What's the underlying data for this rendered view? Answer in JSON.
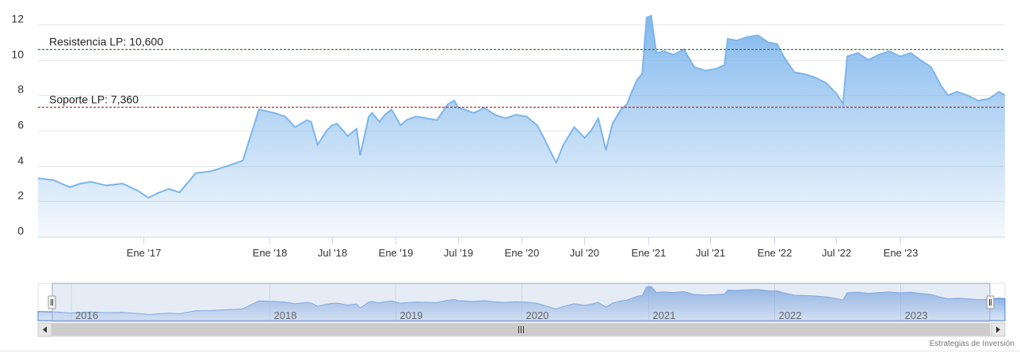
{
  "chart_data": {
    "type": "area",
    "x_ticks": [
      "Ene '17",
      "Ene '18",
      "Jul '18",
      "Ene '19",
      "Jul '19",
      "Ene '20",
      "Jul '20",
      "Ene '21",
      "Jul '21",
      "Ene '22",
      "Jul '22",
      "Ene '23"
    ],
    "x_tick_dates": [
      "2017-01-01",
      "2018-01-01",
      "2018-07-01",
      "2019-01-01",
      "2019-07-01",
      "2020-01-01",
      "2020-07-01",
      "2021-01-01",
      "2021-07-01",
      "2022-01-01",
      "2022-07-01",
      "2023-01-01"
    ],
    "y_ticks": [
      0,
      2,
      4,
      6,
      8,
      10,
      12
    ],
    "ylim": [
      0,
      12.5
    ],
    "xlim": [
      "2016-03-01",
      "2023-11-01"
    ],
    "series": [
      {
        "x": [
          "2016-03-01",
          "2016-04-15",
          "2016-06-01",
          "2016-07-01",
          "2016-08-01",
          "2016-09-15",
          "2016-11-01",
          "2016-12-15",
          "2017-01-15",
          "2017-02-15",
          "2017-03-15",
          "2017-04-15",
          "2017-06-01",
          "2017-07-15",
          "2017-09-01",
          "2017-10-15",
          "2017-12-01",
          "2018-01-15",
          "2018-02-15",
          "2018-03-15",
          "2018-04-20",
          "2018-05-01",
          "2018-05-20",
          "2018-06-15",
          "2018-07-01",
          "2018-07-15",
          "2018-08-15",
          "2018-09-10",
          "2018-09-20",
          "2018-10-15",
          "2018-10-25",
          "2018-11-15",
          "2018-12-01",
          "2018-12-20",
          "2019-01-01",
          "2019-01-15",
          "2019-02-01",
          "2019-03-01",
          "2019-04-01",
          "2019-05-01",
          "2019-06-01",
          "2019-06-20",
          "2019-07-01",
          "2019-07-20",
          "2019-08-15",
          "2019-09-15",
          "2019-10-15",
          "2019-11-15",
          "2019-12-15",
          "2020-01-15",
          "2020-02-15",
          "2020-03-05",
          "2020-03-25",
          "2020-04-10",
          "2020-05-01",
          "2020-06-01",
          "2020-07-01",
          "2020-07-20",
          "2020-08-10",
          "2020-09-01",
          "2020-09-20",
          "2020-10-15",
          "2020-11-01",
          "2020-11-15",
          "2020-12-01",
          "2020-12-15",
          "2020-12-28",
          "2021-01-10",
          "2021-01-25",
          "2021-02-15",
          "2021-03-15",
          "2021-04-15",
          "2021-05-15",
          "2021-06-15",
          "2021-07-15",
          "2021-08-10",
          "2021-08-20",
          "2021-09-15",
          "2021-10-15",
          "2021-11-15",
          "2021-12-15",
          "2022-01-10",
          "2022-02-01",
          "2022-03-01",
          "2022-04-01",
          "2022-05-01",
          "2022-06-01",
          "2022-07-01",
          "2022-07-20",
          "2022-08-01",
          "2022-09-01",
          "2022-10-01",
          "2022-11-01",
          "2022-12-01",
          "2023-01-01",
          "2023-02-01",
          "2023-03-01",
          "2023-04-01",
          "2023-05-01",
          "2023-05-20",
          "2023-06-15",
          "2023-07-15",
          "2023-08-15",
          "2023-09-15",
          "2023-10-15",
          "2023-11-01"
        ],
        "y": [
          3.3,
          3.2,
          2.8,
          3.0,
          3.1,
          2.9,
          3.0,
          2.6,
          2.2,
          2.5,
          2.7,
          2.5,
          3.6,
          3.7,
          4.0,
          4.3,
          7.2,
          7.0,
          6.8,
          6.2,
          6.6,
          6.5,
          5.2,
          6.0,
          6.3,
          6.4,
          5.7,
          6.1,
          4.6,
          6.8,
          7.0,
          6.5,
          6.9,
          7.2,
          6.8,
          6.3,
          6.6,
          6.8,
          6.7,
          6.6,
          7.5,
          7.7,
          7.3,
          7.2,
          7.0,
          7.3,
          6.9,
          6.7,
          6.9,
          6.8,
          6.3,
          5.6,
          4.8,
          4.2,
          5.2,
          6.2,
          5.6,
          6.0,
          6.7,
          4.9,
          6.4,
          7.2,
          7.5,
          8.2,
          8.9,
          9.2,
          12.4,
          12.5,
          10.4,
          10.5,
          10.3,
          10.6,
          9.6,
          9.4,
          9.5,
          9.7,
          11.2,
          11.1,
          11.3,
          11.4,
          11.0,
          10.9,
          10.1,
          9.3,
          9.2,
          9.0,
          8.7,
          8.1,
          7.5,
          10.2,
          10.4,
          10.0,
          10.3,
          10.5,
          10.2,
          10.4,
          10.0,
          9.6,
          8.5,
          8.0,
          8.2,
          8.0,
          7.7,
          7.8,
          8.2,
          8.0
        ]
      }
    ],
    "annotations": [
      {
        "label": "Resistencia LP: 10,600",
        "value": 10.6,
        "color": "#2e7d32"
      },
      {
        "label": "Soporte LP: 7,360",
        "value": 7.36,
        "color": "#c62828"
      }
    ],
    "navigator": {
      "labels": [
        "2016",
        "2018",
        "2019",
        "2020",
        "2021",
        "2022",
        "2023"
      ],
      "label_dates": [
        "2016-01-01",
        "2018-01-01",
        "2019-01-01",
        "2020-01-01",
        "2021-01-01",
        "2022-01-01",
        "2023-01-01"
      ],
      "range_start": "2016-03-01",
      "range_end": "2023-11-01"
    },
    "grid": true,
    "credit": "Estrategias de Inversión",
    "colors": {
      "line": "#7cb5ec",
      "fill_top": "#7cb5ec",
      "fill_bottom": "#ffffff",
      "grid": "#e6e6e6",
      "navigator_mask": "#c8d4ec"
    }
  }
}
